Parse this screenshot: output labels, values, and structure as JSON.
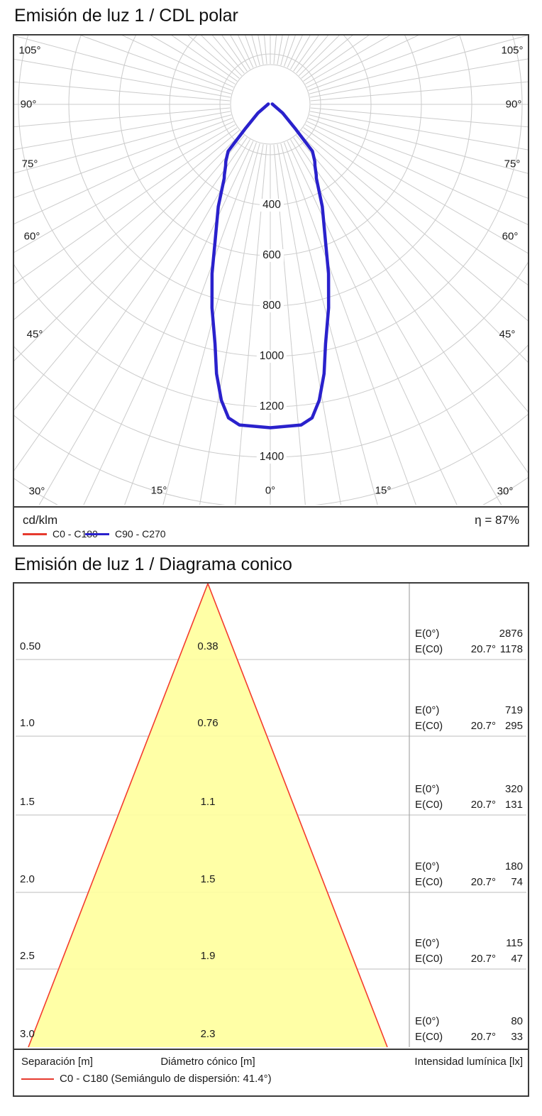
{
  "polar_section": {
    "title": "Emisión de luz 1 / CDL polar",
    "unit_label": "cd/klm",
    "efficiency_label": "η = 87%",
    "legend": [
      {
        "label": "C0 - C180",
        "color": "#e63a2e"
      },
      {
        "label": "C90 - C270",
        "color": "#2a21cc"
      }
    ],
    "angle_labels": [
      "105°",
      "90°",
      "75°",
      "60°",
      "45°",
      "30°",
      "15°",
      "0°"
    ],
    "ring_labels": [
      "400",
      "600",
      "800",
      "1000",
      "1200",
      "1400"
    ]
  },
  "cone_section": {
    "title": "Emisión de luz 1 / Diagrama conico",
    "col_headers": [
      "Separación [m]",
      "Diámetro cónico [m]",
      "Intensidad lumínica [lx]"
    ],
    "legend_label": "C0 - C180 (Semiángulo de dispersión: 41.4°)",
    "legend_color": "#e63a2e",
    "e0_label": "E(0°)",
    "ec0_label": "E(C0)"
  },
  "chart_data": [
    {
      "type": "line",
      "subtype": "polar-luminous-intensity",
      "title": "Emisión de luz 1 / CDL polar",
      "units": "cd/klm",
      "efficiency": "87%",
      "angle_ticks_deg": [
        0,
        15,
        30,
        45,
        60,
        75,
        90,
        105
      ],
      "angle_grid_step_deg": 5,
      "radial_ticks": [
        200,
        400,
        600,
        800,
        1000,
        1200,
        1400
      ],
      "radial_labeled_ticks": [
        400,
        600,
        800,
        1000,
        1200,
        1400
      ],
      "series": [
        {
          "name": "C0 - C180",
          "color": "#e63a2e",
          "intensity_profile_cd_per_klm": [
            [
              0,
              1283
            ],
            [
              5.5,
              1278
            ],
            [
              7.6,
              1255
            ],
            [
              9.4,
              1190
            ],
            [
              11.3,
              1090
            ],
            [
              13,
              975
            ],
            [
              16,
              840
            ],
            [
              19,
              710
            ],
            [
              22,
              585
            ],
            [
              27,
              455
            ],
            [
              32,
              345
            ],
            [
              33,
              335
            ],
            [
              36,
              302
            ],
            [
              38,
              287
            ],
            [
              42,
              250
            ],
            [
              46,
              135
            ],
            [
              55,
              60
            ],
            [
              100,
              8
            ]
          ]
        },
        {
          "name": "C90 - C270",
          "color": "#2a21cc",
          "intensity_profile_cd_per_klm": [
            [
              0,
              1283
            ],
            [
              5.5,
              1278
            ],
            [
              7.6,
              1255
            ],
            [
              9.4,
              1190
            ],
            [
              11.3,
              1090
            ],
            [
              13,
              975
            ],
            [
              16,
              840
            ],
            [
              19,
              710
            ],
            [
              22,
              585
            ],
            [
              27,
              455
            ],
            [
              32,
              345
            ],
            [
              33,
              335
            ],
            [
              36,
              302
            ],
            [
              38,
              287
            ],
            [
              42,
              250
            ],
            [
              46,
              135
            ],
            [
              55,
              60
            ],
            [
              100,
              8
            ]
          ]
        }
      ]
    },
    {
      "type": "table",
      "subtype": "cone-diagram",
      "title": "Emisión de luz 1 / Diagrama conico",
      "beam_half_angle_deg": 20.7,
      "dispersion_semiangle_label": "41.4°",
      "columns": [
        "Separación [m]",
        "Diámetro cónico [m]",
        "E(0°) [lx]",
        "E(C0) 20.7° [lx]"
      ],
      "rows": [
        {
          "separation": "0.50",
          "diameter": "0.38",
          "e0": "2876",
          "angle": "20.7°",
          "ec0": "1178"
        },
        {
          "separation": "1.0",
          "diameter": "0.76",
          "e0": "719",
          "angle": "20.7°",
          "ec0": "295"
        },
        {
          "separation": "1.5",
          "diameter": "1.1",
          "e0": "320",
          "angle": "20.7°",
          "ec0": "131"
        },
        {
          "separation": "2.0",
          "diameter": "1.5",
          "e0": "180",
          "angle": "20.7°",
          "ec0": "74"
        },
        {
          "separation": "2.5",
          "diameter": "1.9",
          "e0": "115",
          "angle": "20.7°",
          "ec0": "47"
        },
        {
          "separation": "3.0",
          "diameter": "2.3",
          "e0": "80",
          "angle": "20.7°",
          "ec0": "33"
        }
      ],
      "fill_color": "#ffff9e",
      "edge_color": "#f43b2d"
    }
  ]
}
